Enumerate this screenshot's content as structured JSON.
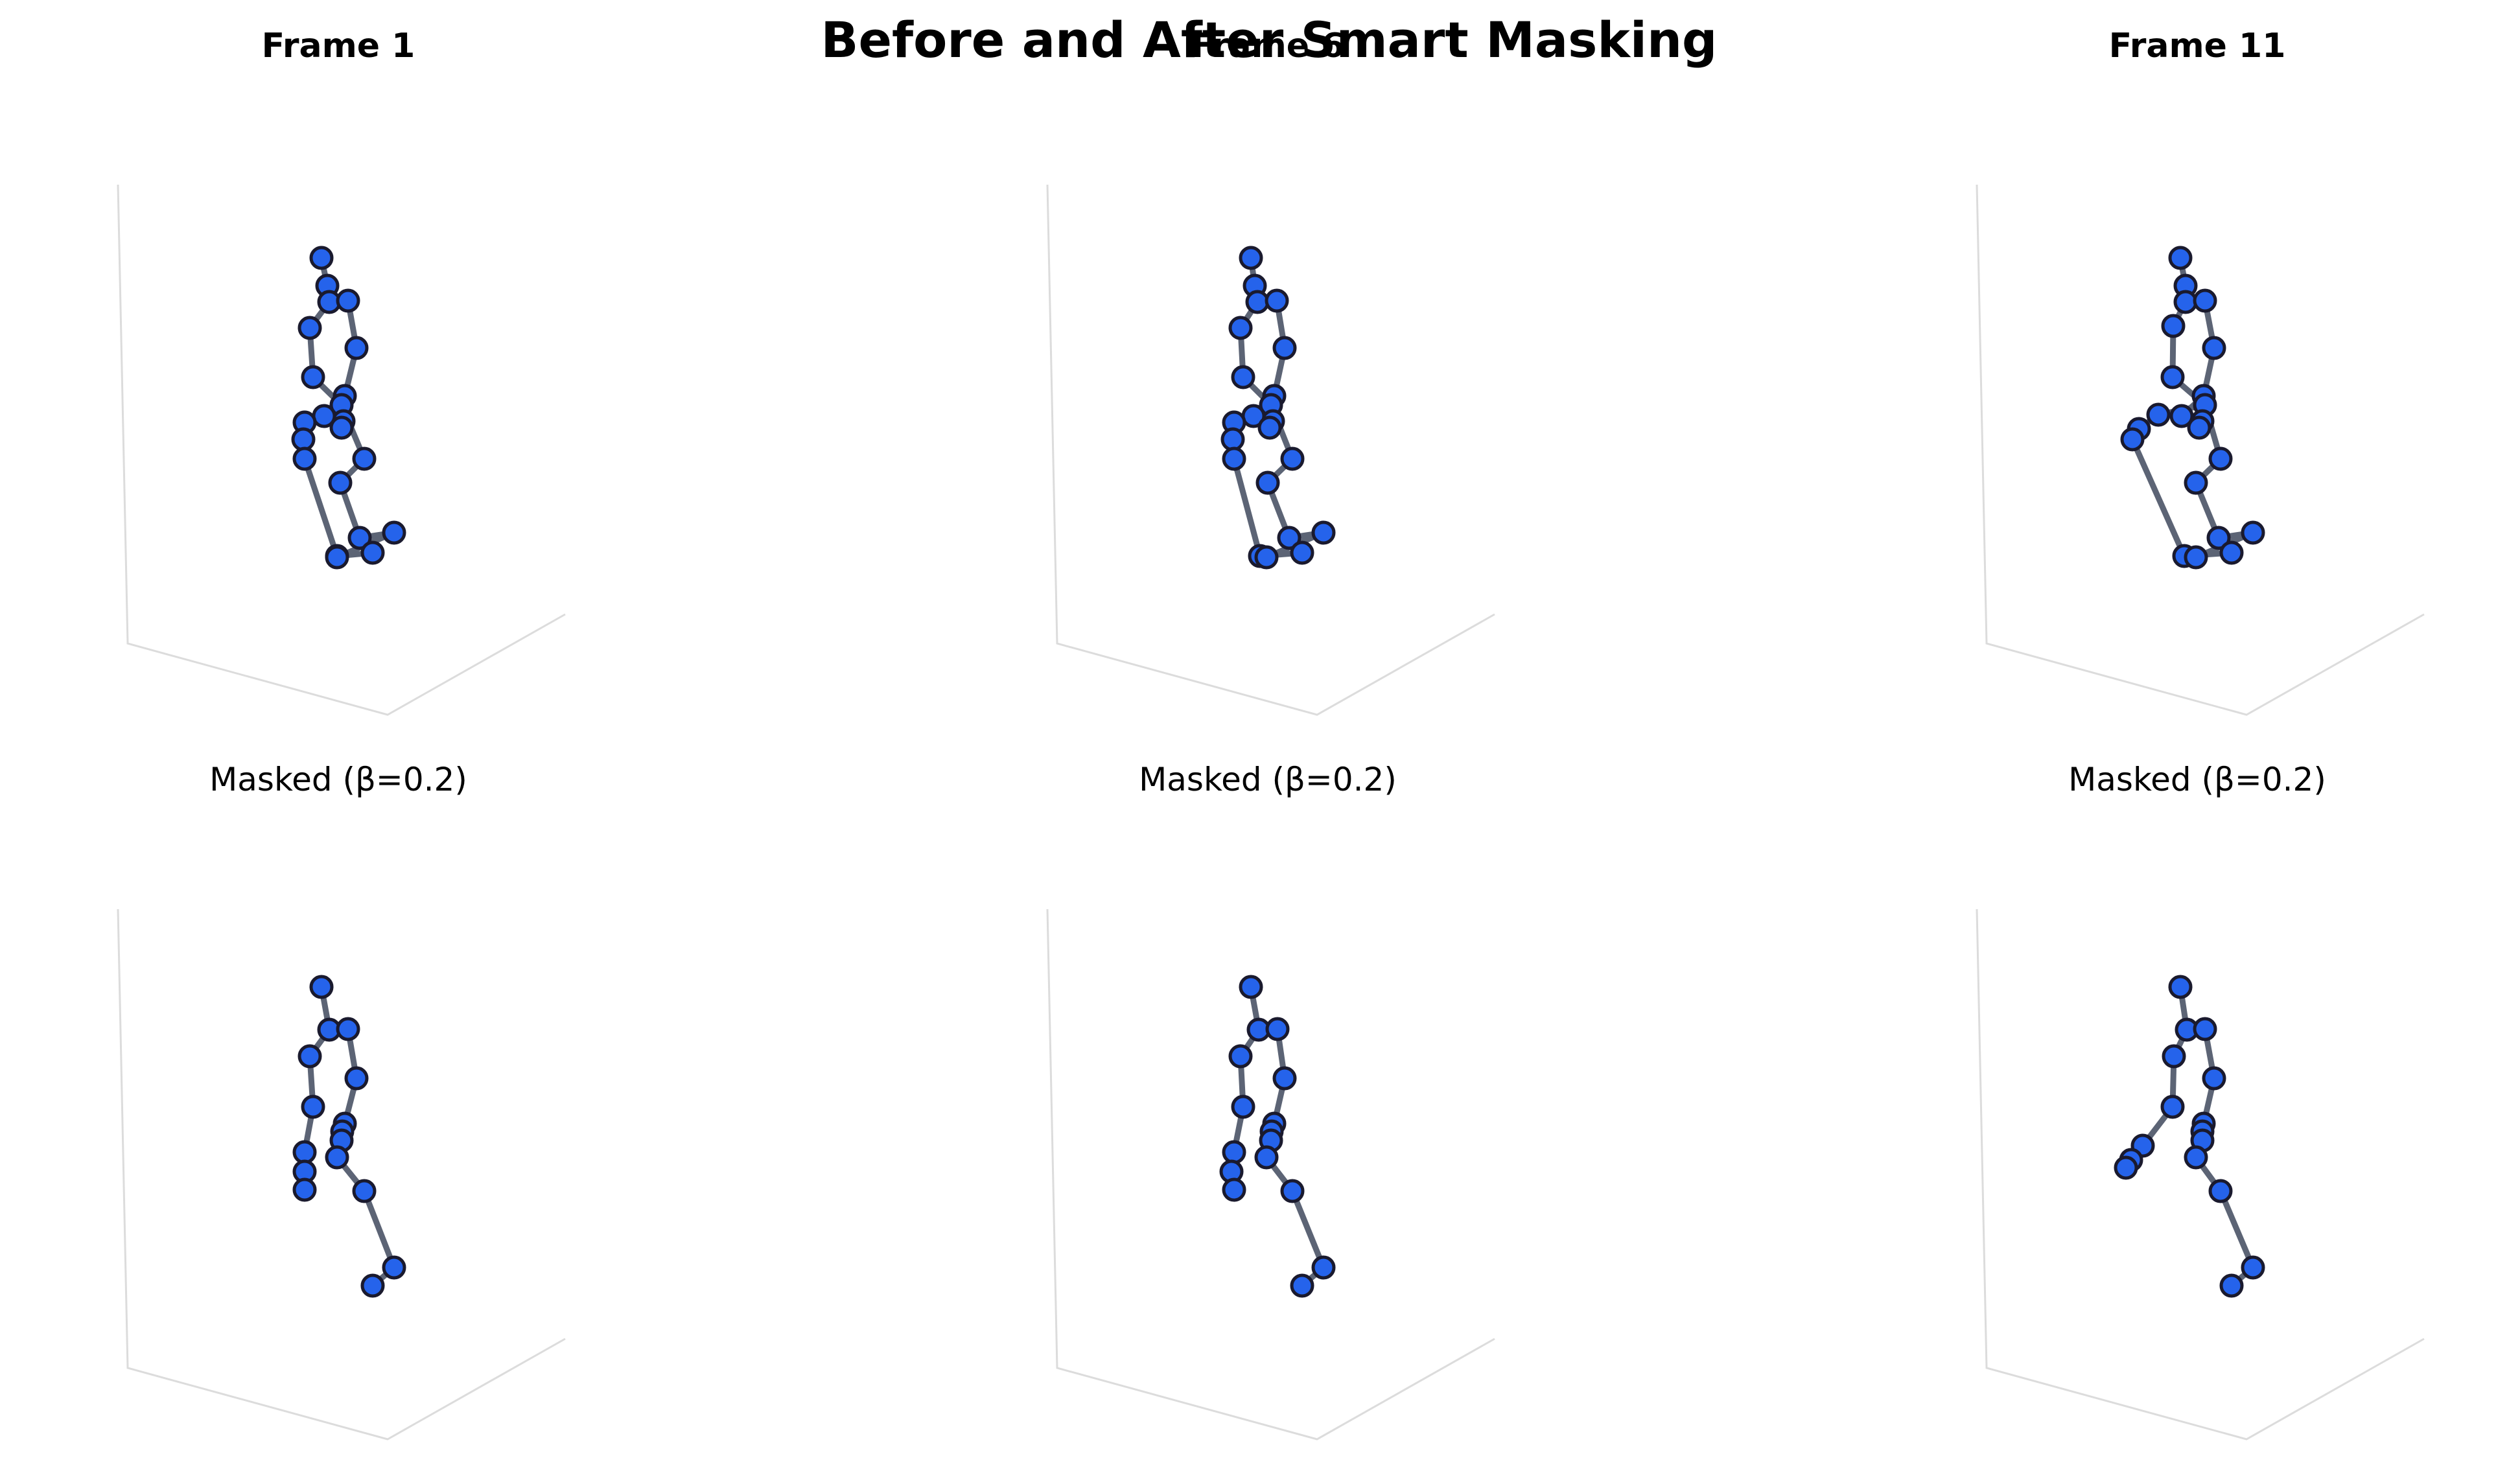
{
  "figure": {
    "title": "Before and After Smart Masking"
  },
  "colors": {
    "joint_fill": "#2563eb",
    "joint_edge": "#1a1a2e",
    "bone": "#5c6475",
    "axis_line": "#dcdcdc"
  },
  "columns": [
    {
      "title": "Frame 1"
    },
    {
      "title": "Frame 6"
    },
    {
      "title": "Frame 11"
    }
  ],
  "row_titles": {
    "original": "",
    "masked": "Masked (β=0.2)"
  },
  "skeleton": {
    "joint_count": 23,
    "masked_joint_count": 18,
    "bones": [
      [
        0,
        1
      ],
      [
        1,
        2
      ],
      [
        2,
        3
      ],
      [
        2,
        4
      ],
      [
        3,
        5
      ],
      [
        4,
        6
      ],
      [
        5,
        7
      ],
      [
        6,
        8
      ],
      [
        7,
        9
      ],
      [
        7,
        10
      ],
      [
        7,
        11
      ],
      [
        8,
        12
      ],
      [
        8,
        13
      ],
      [
        12,
        14
      ],
      [
        14,
        16
      ],
      [
        13,
        15
      ],
      [
        15,
        17
      ],
      [
        16,
        18
      ],
      [
        18,
        19
      ],
      [
        17,
        20
      ],
      [
        20,
        21
      ],
      [
        21,
        22
      ]
    ]
  }
}
